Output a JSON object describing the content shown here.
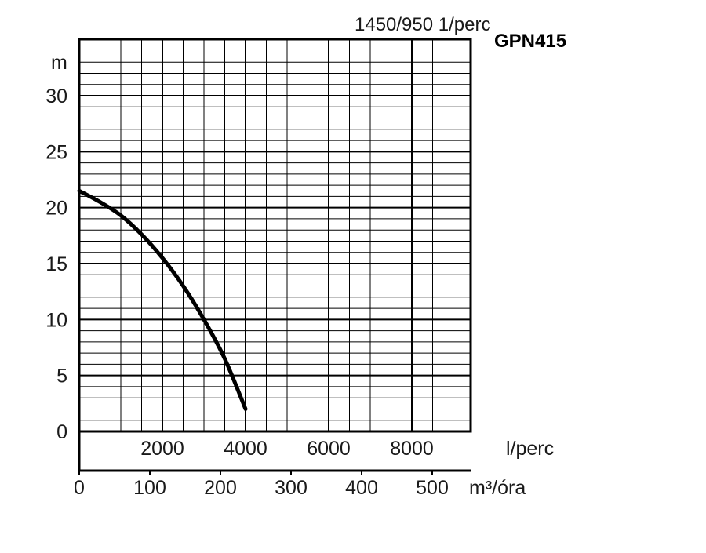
{
  "chart_data": {
    "type": "line",
    "title": "1450/950 1/perc",
    "subtitle": "GPN415",
    "ylabel": "m",
    "xlabel": "l/perc",
    "x2label": "m³/óra",
    "ylim": [
      0,
      30
    ],
    "xlim_lps": [
      0,
      9000
    ],
    "xlim_m3h": [
      0,
      540
    ],
    "grid": true,
    "y_ticks": [
      "0",
      "5",
      "10",
      "15",
      "20",
      "25",
      "30"
    ],
    "y_tick_values": [
      0,
      5,
      10,
      15,
      20,
      25,
      30
    ],
    "x_ticks_lps": [
      "2000",
      "4000",
      "6000",
      "8000"
    ],
    "x_tick_values_lps": [
      2000,
      4000,
      6000,
      8000
    ],
    "x_ticks_m3h": [
      "0",
      "100",
      "200",
      "300",
      "400",
      "500"
    ],
    "x_tick_values_m3h": [
      0,
      100,
      200,
      300,
      400,
      500
    ],
    "series": [
      {
        "x": [
          0,
          500,
          1000,
          1500,
          2000,
          2500,
          3000,
          3500,
          4000
        ],
        "y": [
          21.5,
          20.5,
          19.3,
          17.6,
          15.5,
          13.0,
          10.0,
          6.5,
          2.0
        ]
      }
    ]
  }
}
